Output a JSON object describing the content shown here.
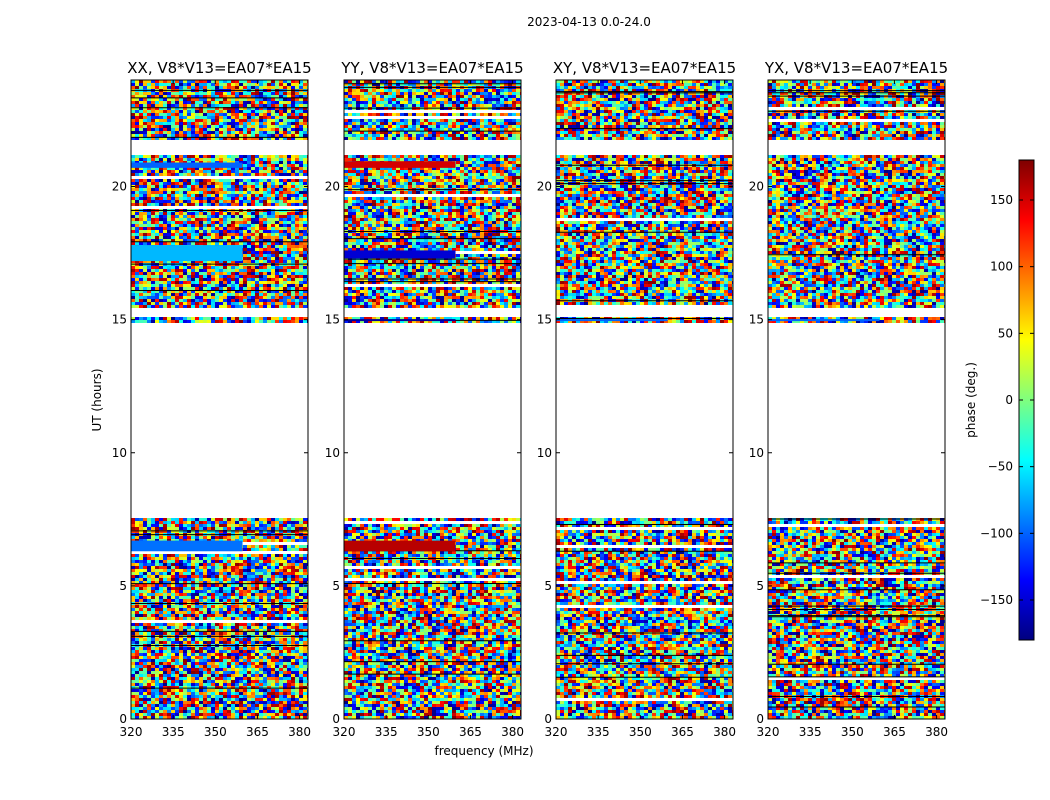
{
  "chart_data": {
    "type": "heatmap",
    "suptitle": "2023-04-13 0.0-24.0",
    "xlabel": "frequency (MHz)",
    "ylabel": "UT (hours)",
    "xlim": [
      320,
      383
    ],
    "ylim": [
      0,
      24
    ],
    "xticks": [
      320,
      335,
      350,
      365,
      380
    ],
    "yticks": [
      0,
      5,
      10,
      15,
      20
    ],
    "colorbar": {
      "label": "phase (deg.)",
      "range": [
        -180,
        180
      ],
      "ticks": [
        150,
        100,
        50,
        0,
        -50,
        -100,
        -150
      ],
      "colormap": [
        "#00007f",
        "#0000ff",
        "#007fff",
        "#00ffff",
        "#7fff7f",
        "#ffff00",
        "#ff7f00",
        "#ff0000",
        "#7f0000"
      ]
    },
    "empty_ut_ranges": [
      [
        7.6,
        14.9
      ],
      [
        15.05,
        15.4
      ],
      [
        21.2,
        21.7
      ]
    ],
    "panels": [
      {
        "title": "XX, V8*V13=EA07*EA15",
        "stripes": [
          [
            20.7,
            20.9,
            -100
          ],
          [
            17.2,
            17.8,
            -70
          ],
          [
            6.3,
            6.7,
            -95
          ]
        ]
      },
      {
        "title": "YY, V8*V13=EA07*EA15",
        "stripes": [
          [
            20.7,
            20.95,
            150
          ],
          [
            17.3,
            17.6,
            -150
          ],
          [
            6.3,
            6.7,
            160
          ],
          [
            14.95,
            15.02,
            -170
          ]
        ]
      },
      {
        "title": "XY, V8*V13=EA07*EA15",
        "stripes": [
          [
            14.95,
            15.02,
            -100
          ]
        ]
      },
      {
        "title": "YX, V8*V13=EA07*EA15",
        "stripes": [
          [
            14.95,
            15.02,
            -100
          ]
        ]
      }
    ]
  }
}
